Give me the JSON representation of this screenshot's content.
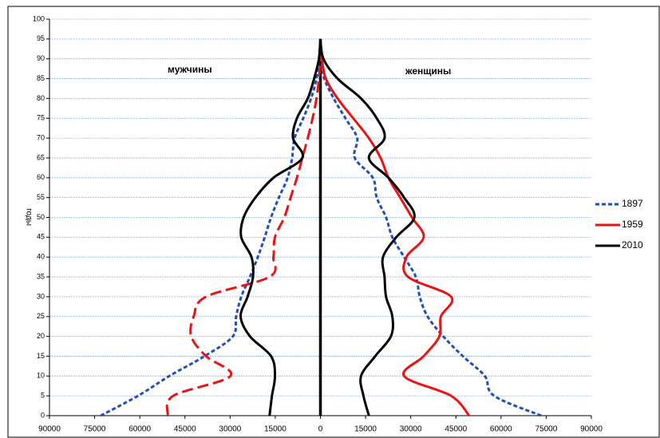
{
  "chart_data": {
    "type": "pyramid-line",
    "y_label": "годы",
    "annotations": [
      "мужчины",
      "женщины"
    ],
    "ages": [
      0,
      5,
      10,
      15,
      20,
      25,
      30,
      35,
      40,
      45,
      50,
      55,
      60,
      65,
      70,
      75,
      80,
      85,
      90,
      95
    ],
    "series": [
      {
        "name": "1897",
        "color": "#1f4fbf",
        "male_dashed": true,
        "female_dashed": true,
        "male": [
          -73000,
          -60600,
          -50200,
          -38500,
          -29100,
          -28000,
          -26300,
          -23400,
          -20800,
          -18500,
          -16400,
          -13800,
          -10900,
          -9400,
          -8600,
          -5700,
          -3100,
          -1300,
          -500,
          0
        ],
        "female": [
          73300,
          57700,
          54600,
          47300,
          40800,
          35600,
          33000,
          31700,
          27800,
          23900,
          21800,
          18700,
          17400,
          11400,
          12200,
          8300,
          4400,
          1300,
          300,
          0
        ]
      },
      {
        "name": "1959",
        "color": "#ee1111",
        "male_dashed": true,
        "female_dashed": false,
        "male": [
          -50700,
          -48900,
          -29900,
          -38000,
          -42900,
          -42100,
          -38000,
          -16900,
          -15600,
          -15100,
          -12000,
          -9900,
          -7800,
          -6000,
          -4200,
          -2600,
          -1300,
          -500,
          0,
          0
        ],
        "female": [
          49400,
          43400,
          27800,
          34300,
          39500,
          40000,
          43400,
          29100,
          28600,
          34300,
          30400,
          26500,
          22600,
          20000,
          16100,
          10900,
          5700,
          1800,
          500,
          0
        ]
      },
      {
        "name": "2010",
        "color": "#000000",
        "male_dashed": false,
        "female_dashed": false,
        "male": [
          -16900,
          -16100,
          -15100,
          -16400,
          -23400,
          -26500,
          -24200,
          -22400,
          -22900,
          -26300,
          -25500,
          -21600,
          -15600,
          -6000,
          -9100,
          -7800,
          -4200,
          -2100,
          -500,
          0
        ],
        "female": [
          16100,
          14300,
          13500,
          18200,
          23400,
          23900,
          21800,
          21300,
          20800,
          25200,
          31200,
          27800,
          22600,
          16100,
          21300,
          18700,
          13500,
          5700,
          1000,
          0
        ]
      }
    ],
    "xlim": [
      -90000,
      90000
    ],
    "ylim": [
      0,
      100
    ],
    "xticks": [
      {
        "value": -90000,
        "label": "90000"
      },
      {
        "value": -75000,
        "label": "75000"
      },
      {
        "value": -60000,
        "label": "60000"
      },
      {
        "value": -45000,
        "label": "45000"
      },
      {
        "value": -30000,
        "label": "30000"
      },
      {
        "value": -15000,
        "label": "15000"
      },
      0,
      15000,
      30000,
      45000,
      60000,
      75000,
      90000
    ],
    "yticks": [
      0,
      5,
      10,
      15,
      20,
      25,
      30,
      35,
      40,
      45,
      50,
      55,
      60,
      65,
      70,
      75,
      80,
      85,
      90,
      95,
      100
    ],
    "grid": true,
    "grid_color": "#8fb4e3",
    "legend": "right"
  }
}
